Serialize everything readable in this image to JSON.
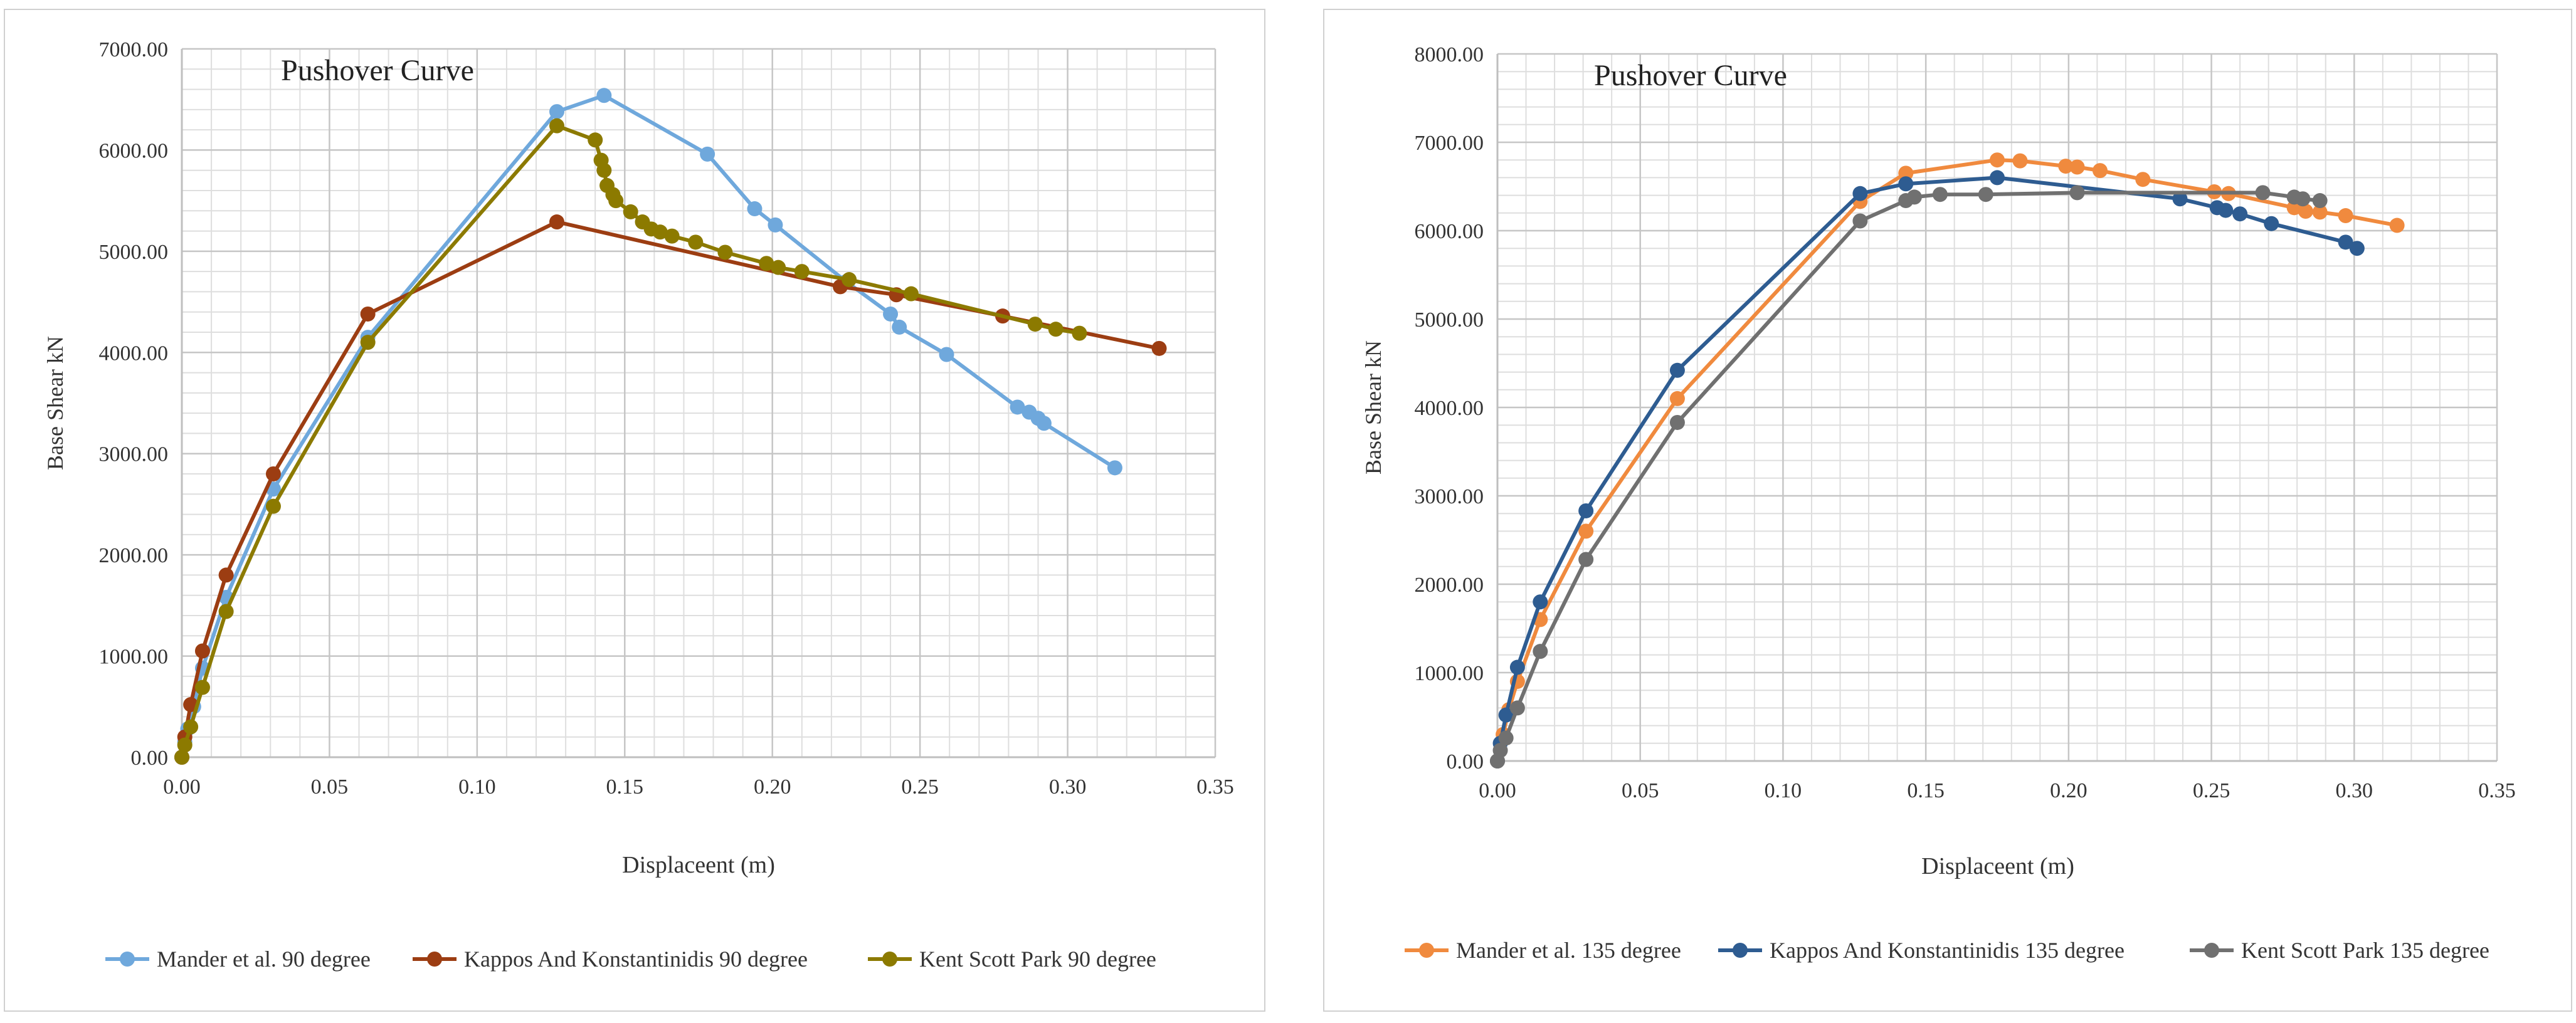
{
  "chart_data": [
    {
      "type": "line",
      "title": "Pushover Curve",
      "xlabel": "Displaceent (m)",
      "ylabel": "Base Shear kN",
      "xlim": [
        0,
        0.35
      ],
      "ylim": [
        0,
        7000
      ],
      "x_ticks": [
        "0.00",
        "0.05",
        "0.10",
        "0.15",
        "0.20",
        "0.25",
        "0.30",
        "0.35"
      ],
      "y_ticks": [
        "0.00",
        "1000.00",
        "2000.00",
        "3000.00",
        "4000.00",
        "5000.00",
        "6000.00",
        "7000.00"
      ],
      "legend_position": "bottom",
      "series": [
        {
          "name": "Mander et al. 90 degree",
          "color": "#6fa8dc",
          "points": [
            [
              0,
              0
            ],
            [
              0.001,
              150
            ],
            [
              0.002,
              280
            ],
            [
              0.004,
              500
            ],
            [
              0.007,
              880
            ],
            [
              0.015,
              1580
            ],
            [
              0.031,
              2650
            ],
            [
              0.063,
              4150
            ],
            [
              0.127,
              6380
            ],
            [
              0.143,
              6540
            ],
            [
              0.178,
              5960
            ],
            [
              0.194,
              5420
            ],
            [
              0.201,
              5260
            ],
            [
              0.225,
              4700
            ],
            [
              0.24,
              4380
            ],
            [
              0.243,
              4250
            ],
            [
              0.259,
              3980
            ],
            [
              0.283,
              3460
            ],
            [
              0.287,
              3410
            ],
            [
              0.29,
              3350
            ],
            [
              0.292,
              3300
            ],
            [
              0.316,
              2860
            ]
          ]
        },
        {
          "name": "Kappos And Konstantinidis 90 degree",
          "color": "#9c3d12",
          "points": [
            [
              0,
              0
            ],
            [
              0.001,
              200
            ],
            [
              0.003,
              520
            ],
            [
              0.007,
              1050
            ],
            [
              0.015,
              1800
            ],
            [
              0.031,
              2800
            ],
            [
              0.063,
              4380
            ],
            [
              0.127,
              5290
            ],
            [
              0.223,
              4650
            ],
            [
              0.242,
              4570
            ],
            [
              0.278,
              4360
            ],
            [
              0.331,
              4040
            ]
          ]
        },
        {
          "name": "Kent Scott Park 90 degree",
          "color": "#8c7a00",
          "points": [
            [
              0,
              0
            ],
            [
              0.001,
              120
            ],
            [
              0.003,
              300
            ],
            [
              0.007,
              690
            ],
            [
              0.015,
              1440
            ],
            [
              0.031,
              2480
            ],
            [
              0.063,
              4100
            ],
            [
              0.127,
              6240
            ],
            [
              0.14,
              6100
            ],
            [
              0.142,
              5900
            ],
            [
              0.143,
              5800
            ],
            [
              0.144,
              5650
            ],
            [
              0.146,
              5560
            ],
            [
              0.147,
              5500
            ],
            [
              0.152,
              5390
            ],
            [
              0.156,
              5290
            ],
            [
              0.159,
              5220
            ],
            [
              0.162,
              5190
            ],
            [
              0.166,
              5150
            ],
            [
              0.174,
              5090
            ],
            [
              0.184,
              4990
            ],
            [
              0.198,
              4880
            ],
            [
              0.202,
              4840
            ],
            [
              0.21,
              4800
            ],
            [
              0.226,
              4720
            ],
            [
              0.247,
              4580
            ],
            [
              0.289,
              4280
            ],
            [
              0.296,
              4230
            ],
            [
              0.304,
              4190
            ]
          ]
        }
      ]
    },
    {
      "type": "line",
      "title": "Pushover Curve",
      "xlabel": "Displaceent (m)",
      "ylabel": "Base Shear kN",
      "xlim": [
        0,
        0.35
      ],
      "ylim": [
        0,
        8000
      ],
      "x_ticks": [
        "0.00",
        "0.05",
        "0.10",
        "0.15",
        "0.20",
        "0.25",
        "0.30",
        "0.35"
      ],
      "y_ticks": [
        "0.00",
        "1000.00",
        "2000.00",
        "3000.00",
        "4000.00",
        "5000.00",
        "6000.00",
        "7000.00",
        "8000.00"
      ],
      "legend_position": "bottom",
      "series": [
        {
          "name": "Mander et al. 135 degree",
          "color": "#f08a3e",
          "points": [
            [
              0,
              0
            ],
            [
              0.002,
              300
            ],
            [
              0.004,
              580
            ],
            [
              0.007,
              900
            ],
            [
              0.015,
              1600
            ],
            [
              0.031,
              2600
            ],
            [
              0.063,
              4100
            ],
            [
              0.127,
              6330
            ],
            [
              0.143,
              6650
            ],
            [
              0.175,
              6800
            ],
            [
              0.183,
              6790
            ],
            [
              0.199,
              6730
            ],
            [
              0.203,
              6720
            ],
            [
              0.211,
              6680
            ],
            [
              0.226,
              6580
            ],
            [
              0.251,
              6440
            ],
            [
              0.256,
              6420
            ],
            [
              0.279,
              6260
            ],
            [
              0.283,
              6220
            ],
            [
              0.288,
              6210
            ],
            [
              0.297,
              6170
            ],
            [
              0.315,
              6060
            ]
          ]
        },
        {
          "name": "Kappos And Konstantinidis 135 degree",
          "color": "#2e5c91",
          "points": [
            [
              0,
              0
            ],
            [
              0.001,
              200
            ],
            [
              0.003,
              520
            ],
            [
              0.007,
              1060
            ],
            [
              0.015,
              1800
            ],
            [
              0.031,
              2830
            ],
            [
              0.063,
              4420
            ],
            [
              0.127,
              6420
            ],
            [
              0.143,
              6530
            ],
            [
              0.175,
              6600
            ],
            [
              0.239,
              6360
            ],
            [
              0.252,
              6260
            ],
            [
              0.255,
              6230
            ],
            [
              0.26,
              6190
            ],
            [
              0.271,
              6080
            ],
            [
              0.297,
              5870
            ],
            [
              0.301,
              5800
            ]
          ]
        },
        {
          "name": "Kent Scott Park 135 degree",
          "color": "#707070",
          "points": [
            [
              0,
              0
            ],
            [
              0.001,
              120
            ],
            [
              0.003,
              260
            ],
            [
              0.007,
              600
            ],
            [
              0.015,
              1240
            ],
            [
              0.031,
              2280
            ],
            [
              0.063,
              3830
            ],
            [
              0.127,
              6110
            ],
            [
              0.143,
              6340
            ],
            [
              0.146,
              6380
            ],
            [
              0.155,
              6410
            ],
            [
              0.171,
              6410
            ],
            [
              0.203,
              6430
            ],
            [
              0.268,
              6430
            ],
            [
              0.279,
              6380
            ],
            [
              0.282,
              6360
            ],
            [
              0.288,
              6340
            ]
          ]
        }
      ]
    }
  ]
}
